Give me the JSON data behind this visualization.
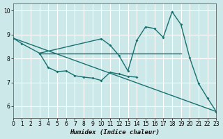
{
  "background_color": "#cce8e8",
  "line_color": "#1a7070",
  "grid_color": "#b0d8d8",
  "ylim": [
    5.5,
    10.3
  ],
  "xlim": [
    0,
    23
  ],
  "yticks": [
    6,
    7,
    8,
    9,
    10
  ],
  "xticks": [
    0,
    1,
    2,
    3,
    4,
    5,
    6,
    7,
    8,
    9,
    10,
    11,
    12,
    13,
    14,
    15,
    16,
    17,
    18,
    19,
    20,
    21,
    22,
    23
  ],
  "xlabel": "Humidex (Indice chaleur)",
  "series": [
    {
      "name": "upper_line_with_markers",
      "x": [
        0,
        1,
        3,
        10,
        11,
        12,
        13,
        14,
        15,
        16,
        17,
        18,
        19,
        20,
        21,
        22,
        23
      ],
      "y": [
        8.85,
        8.62,
        8.22,
        8.82,
        8.55,
        8.12,
        7.48,
        8.75,
        9.32,
        9.25,
        8.88,
        9.95,
        9.42,
        8.02,
        6.95,
        6.35,
        5.78
      ],
      "marker": true,
      "linewidth": 1.0
    },
    {
      "name": "middle_cluster_markers",
      "x": [
        3,
        4,
        5,
        6,
        7,
        8,
        9,
        10,
        11,
        12,
        13,
        14
      ],
      "y": [
        8.22,
        7.62,
        7.45,
        7.48,
        7.28,
        7.22,
        7.18,
        7.08,
        7.42,
        7.35,
        7.25,
        7.22
      ],
      "marker": true,
      "linewidth": 1.0
    },
    {
      "name": "flat_line",
      "x": [
        3,
        19
      ],
      "y": [
        8.22,
        8.22
      ],
      "marker": false,
      "linewidth": 1.0
    },
    {
      "name": "diagonal_line",
      "x": [
        0,
        23
      ],
      "y": [
        8.85,
        5.78
      ],
      "marker": false,
      "linewidth": 1.0
    }
  ]
}
